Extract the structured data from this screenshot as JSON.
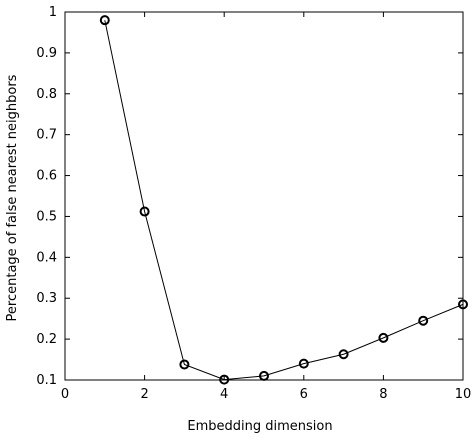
{
  "chart_data": {
    "type": "line",
    "title": "",
    "xlabel": "Embedding dimension",
    "ylabel": "Percentage of false nearest neighbors",
    "xlim": [
      0,
      10
    ],
    "ylim": [
      0.1,
      1
    ],
    "xticks": [
      0,
      2,
      4,
      6,
      8,
      10
    ],
    "yticks": [
      0.1,
      0.2,
      0.3,
      0.4,
      0.5,
      0.6,
      0.7,
      0.8,
      0.9,
      1
    ],
    "grid": false,
    "series": [
      {
        "x": [
          1,
          2,
          3,
          4,
          5,
          6,
          7,
          8,
          9,
          10
        ],
        "values": [
          0.98,
          0.512,
          0.138,
          0.101,
          0.11,
          0.14,
          0.163,
          0.203,
          0.245,
          0.285
        ],
        "marker": "circle",
        "color": "#000000"
      }
    ]
  }
}
